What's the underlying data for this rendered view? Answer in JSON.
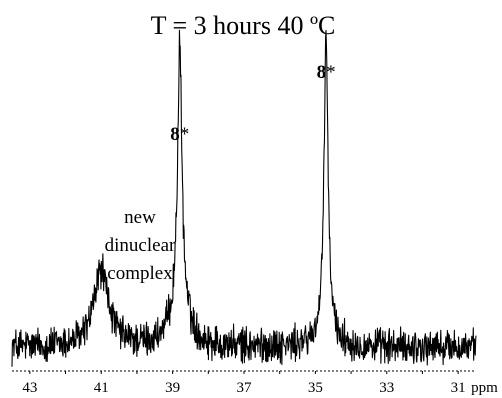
{
  "chart_data": {
    "type": "line",
    "title": "T = 3 hours 40 ºC",
    "xlabel": "",
    "ylabel": "",
    "x_unit": "ppm",
    "x_reversed": true,
    "xlim": [
      43.5,
      30.5
    ],
    "ylim": [
      0,
      1
    ],
    "grid": false,
    "legend": "none",
    "x_ticks": [
      43,
      41,
      39,
      37,
      35,
      33,
      31
    ],
    "x_tick_labels": [
      "43",
      "41",
      "39",
      "37",
      "35",
      "33",
      "31"
    ],
    "noise_level": 0.05,
    "baseline": 0.08,
    "series": [
      {
        "peaks": [
          {
            "ppm": 41.0,
            "height": 0.27,
            "width": 0.25
          },
          {
            "ppm": 38.8,
            "height": 0.88,
            "width": 0.07
          },
          {
            "ppm": 38.8,
            "height": 0.18,
            "width": 0.25
          },
          {
            "ppm": 34.7,
            "height": 1.0,
            "width": 0.06
          },
          {
            "ppm": 34.7,
            "height": 0.12,
            "width": 0.2
          }
        ]
      }
    ],
    "peak_labels": [
      {
        "ppm": 38.8,
        "text": "8",
        "superscript": "*"
      },
      {
        "ppm": 34.7,
        "text": "8",
        "superscript": "*"
      }
    ],
    "annotations": [
      {
        "ppm": 41.0,
        "lines": [
          "new",
          "dinuclear",
          "complex"
        ]
      }
    ],
    "colors": {
      "line": "#000000",
      "axis": "#000000",
      "background": "#ffffff"
    }
  }
}
